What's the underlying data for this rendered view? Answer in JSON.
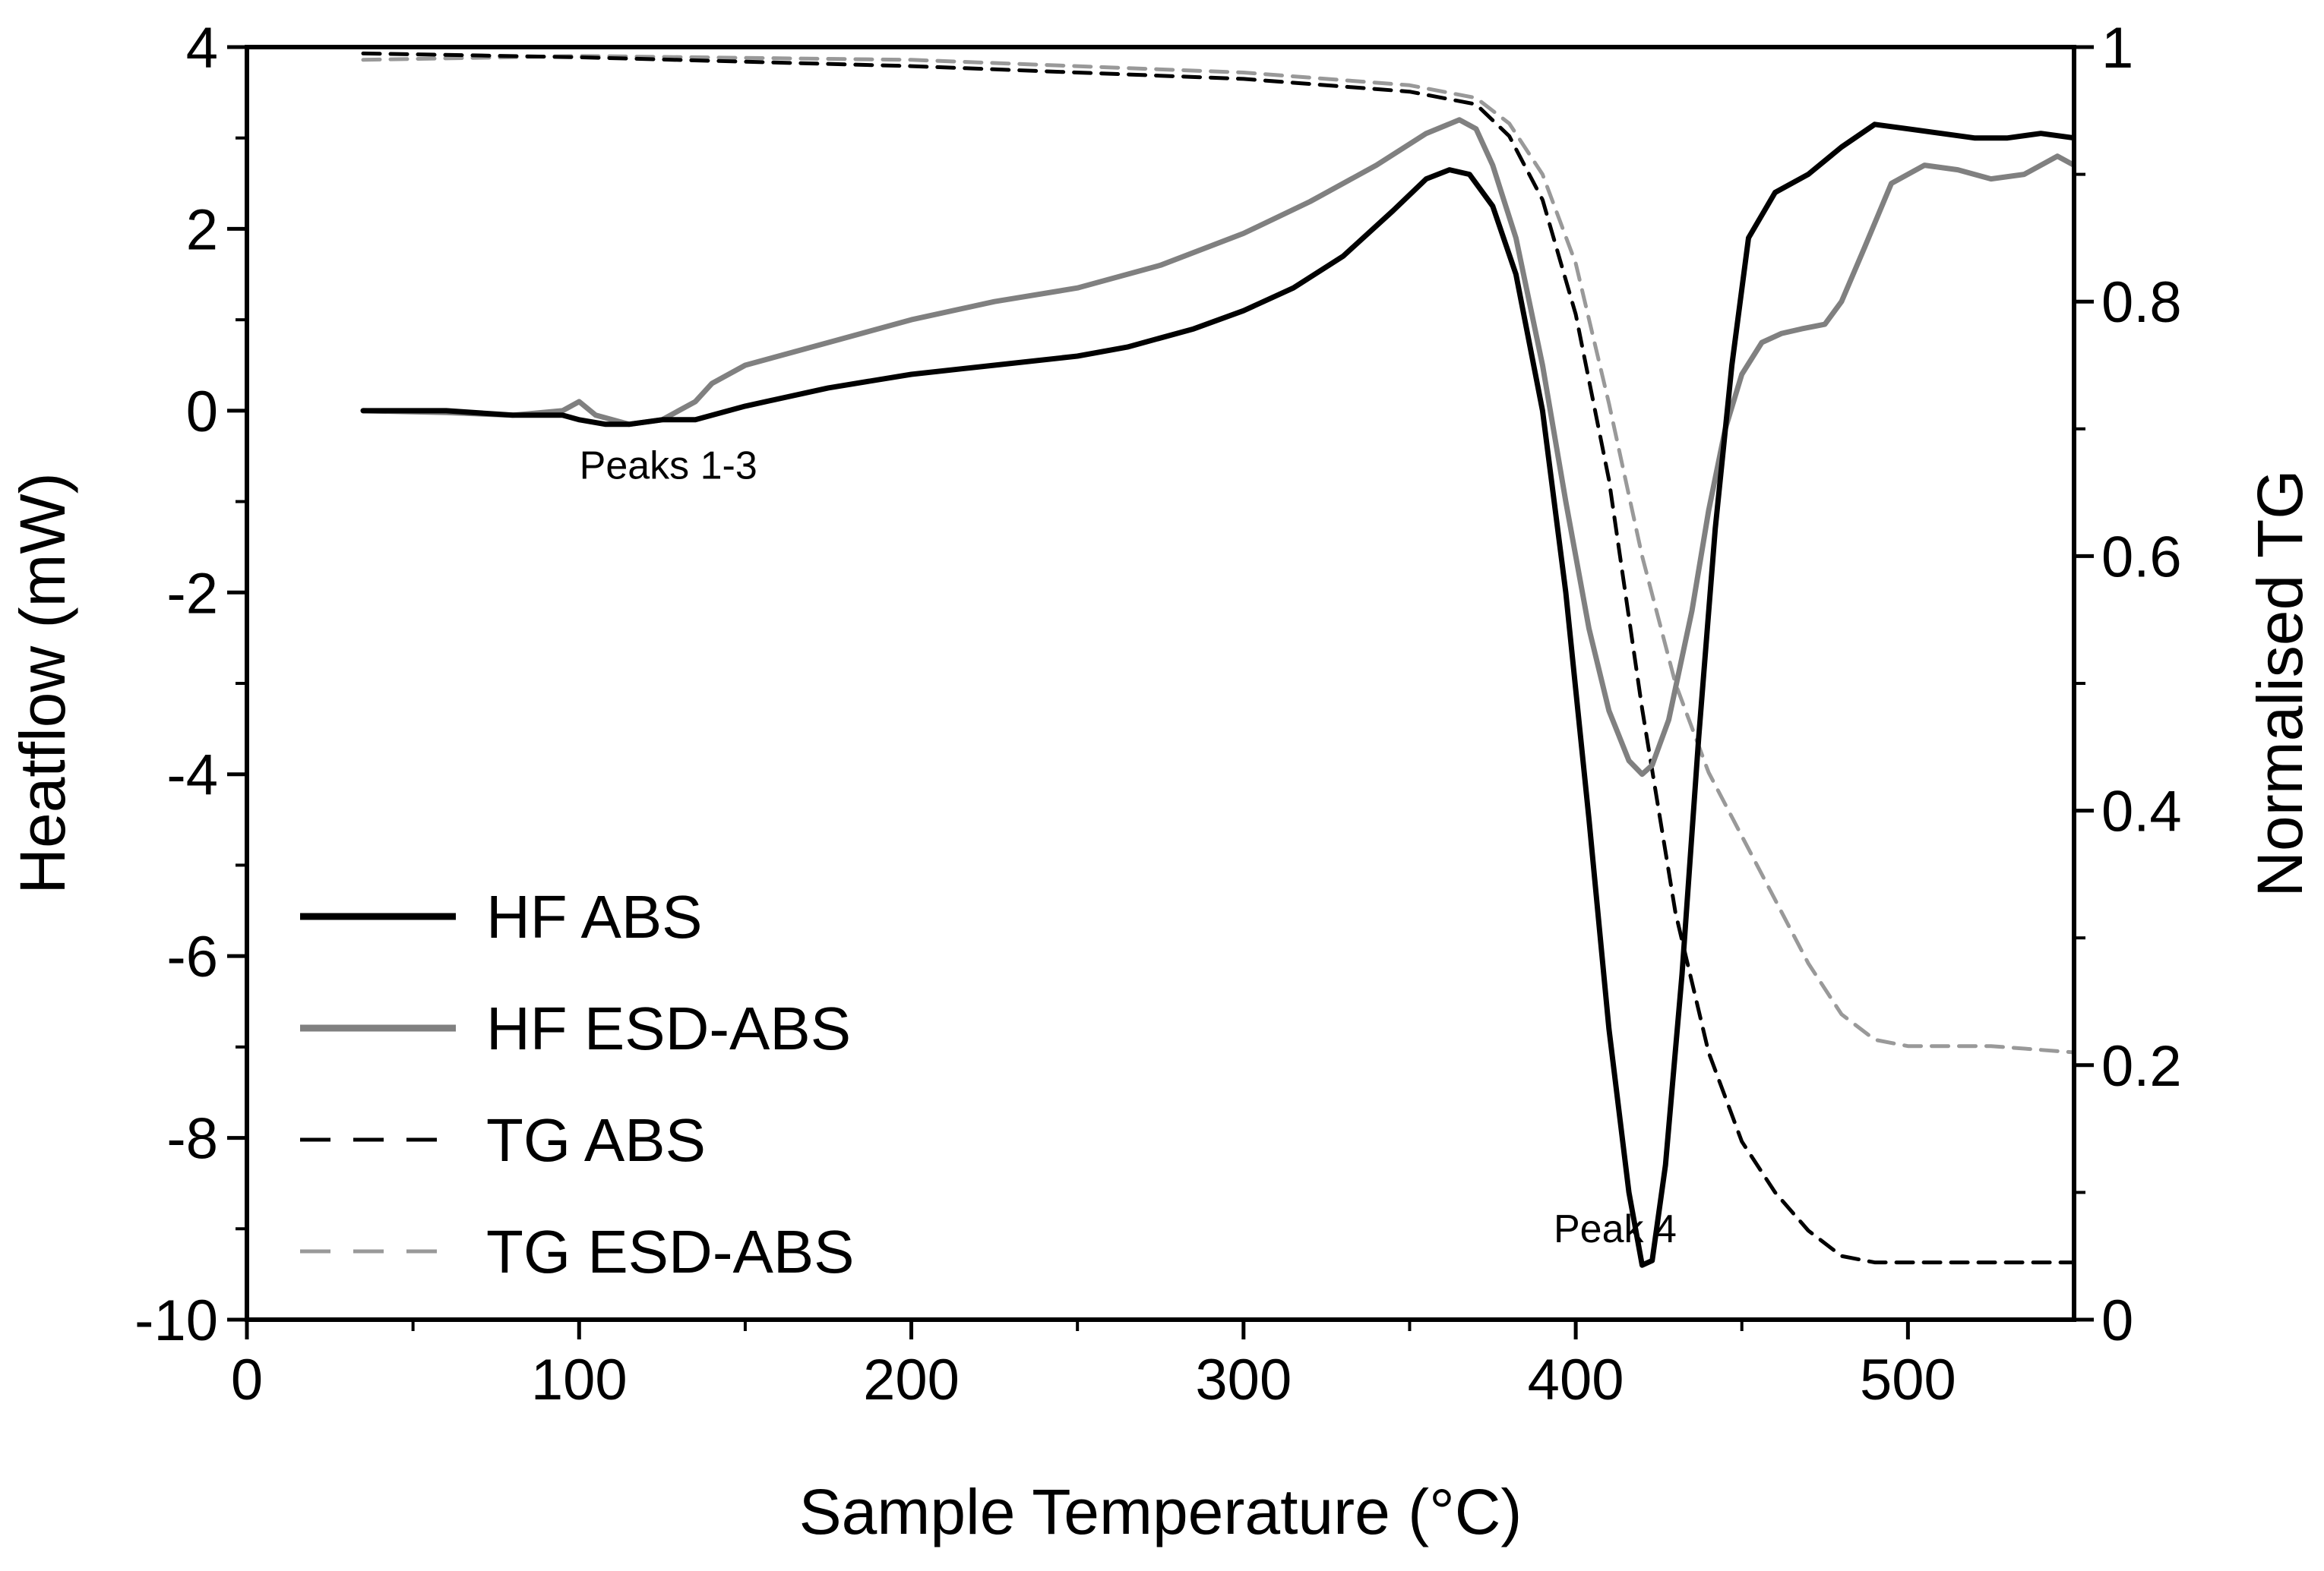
{
  "chart_data": {
    "type": "line",
    "xlabel": "Sample Temperature (°C)",
    "ylabel": "Heatflow (mW)",
    "y2label": "Normalised TG",
    "xlim": [
      0,
      550
    ],
    "ylim": [
      -10,
      4
    ],
    "y2lim": [
      0,
      1
    ],
    "x_ticks": [
      0,
      100,
      200,
      300,
      400,
      500
    ],
    "x_tick_labels": [
      "0",
      "100",
      "200",
      "300",
      "400",
      "500"
    ],
    "y_ticks": [
      4,
      2,
      0,
      -2,
      -4,
      -6,
      -8,
      -10
    ],
    "y_tick_labels": [
      "4",
      "2",
      "0",
      "-2",
      "-4",
      "-6",
      "-8",
      "-10"
    ],
    "y2_ticks": [
      1,
      0.8,
      0.6,
      0.4,
      0.2,
      0
    ],
    "y2_tick_labels": [
      "1",
      "0.8",
      "0.6",
      "0.4",
      "0.2",
      "0"
    ],
    "grid": false,
    "legend_position": "bottom-left",
    "annotations": [
      {
        "text": "Peaks 1-3",
        "x": 120,
        "y": -0.75
      },
      {
        "text": "Peak 4",
        "x": 405,
        "y": -9.15
      }
    ],
    "series": [
      {
        "name": "HF ABS",
        "axis": "left",
        "color": "#000000",
        "style": "solid",
        "x": [
          35,
          60,
          80,
          95,
          100,
          108,
          115,
          125,
          135,
          150,
          175,
          200,
          225,
          250,
          265,
          285,
          300,
          315,
          330,
          345,
          355,
          362,
          368,
          375,
          382,
          390,
          397,
          404,
          410,
          416,
          420,
          423,
          427,
          432,
          437,
          442,
          447,
          452,
          460,
          470,
          480,
          490,
          500,
          510,
          520,
          530,
          540,
          550
        ],
        "y": [
          0.0,
          0.0,
          -0.05,
          -0.05,
          -0.1,
          -0.15,
          -0.15,
          -0.1,
          -0.1,
          0.05,
          0.25,
          0.4,
          0.5,
          0.6,
          0.7,
          0.9,
          1.1,
          1.35,
          1.7,
          2.2,
          2.55,
          2.65,
          2.6,
          2.25,
          1.5,
          0.0,
          -2.0,
          -4.5,
          -6.8,
          -8.6,
          -9.4,
          -9.35,
          -8.3,
          -6.2,
          -3.6,
          -1.3,
          0.5,
          1.9,
          2.4,
          2.6,
          2.9,
          3.15,
          3.1,
          3.05,
          3.0,
          3.0,
          3.05,
          3.0
        ]
      },
      {
        "name": "HF ESD-ABS",
        "axis": "left",
        "color": "#808080",
        "style": "solid",
        "x": [
          35,
          60,
          80,
          95,
          100,
          105,
          115,
          125,
          135,
          140,
          150,
          175,
          200,
          225,
          250,
          275,
          300,
          320,
          340,
          355,
          365,
          370,
          375,
          382,
          390,
          397,
          404,
          410,
          416,
          420,
          423,
          428,
          435,
          440,
          445,
          450,
          456,
          462,
          468,
          475,
          480,
          487,
          495,
          505,
          515,
          525,
          535,
          545,
          550
        ],
        "y": [
          0.0,
          -0.02,
          -0.05,
          0.0,
          0.1,
          -0.05,
          -0.15,
          -0.1,
          0.1,
          0.3,
          0.5,
          0.75,
          1.0,
          1.2,
          1.35,
          1.6,
          1.95,
          2.3,
          2.7,
          3.05,
          3.2,
          3.1,
          2.7,
          1.9,
          0.5,
          -1.0,
          -2.4,
          -3.3,
          -3.85,
          -4.0,
          -3.9,
          -3.4,
          -2.2,
          -1.1,
          -0.2,
          0.4,
          0.75,
          0.85,
          0.9,
          0.95,
          1.2,
          1.8,
          2.5,
          2.7,
          2.65,
          2.55,
          2.6,
          2.8,
          2.7
        ]
      },
      {
        "name": "TG ABS",
        "axis": "right",
        "color": "#000000",
        "style": "dashed",
        "x": [
          35,
          100,
          200,
          300,
          350,
          370,
          380,
          390,
          400,
          410,
          420,
          430,
          440,
          450,
          460,
          470,
          480,
          490,
          500,
          525,
          550
        ],
        "y": [
          0.995,
          0.992,
          0.985,
          0.975,
          0.965,
          0.955,
          0.93,
          0.88,
          0.79,
          0.66,
          0.48,
          0.32,
          0.21,
          0.14,
          0.1,
          0.07,
          0.05,
          0.045,
          0.045,
          0.045,
          0.045
        ]
      },
      {
        "name": "TG ESD-ABS",
        "axis": "right",
        "color": "#999999",
        "style": "dashed",
        "x": [
          35,
          100,
          200,
          300,
          350,
          370,
          380,
          390,
          400,
          410,
          420,
          430,
          440,
          450,
          460,
          470,
          480,
          490,
          500,
          525,
          550
        ],
        "y": [
          0.99,
          0.993,
          0.99,
          0.98,
          0.97,
          0.96,
          0.94,
          0.9,
          0.83,
          0.72,
          0.6,
          0.5,
          0.43,
          0.38,
          0.33,
          0.28,
          0.24,
          0.22,
          0.215,
          0.215,
          0.21
        ]
      }
    ]
  }
}
